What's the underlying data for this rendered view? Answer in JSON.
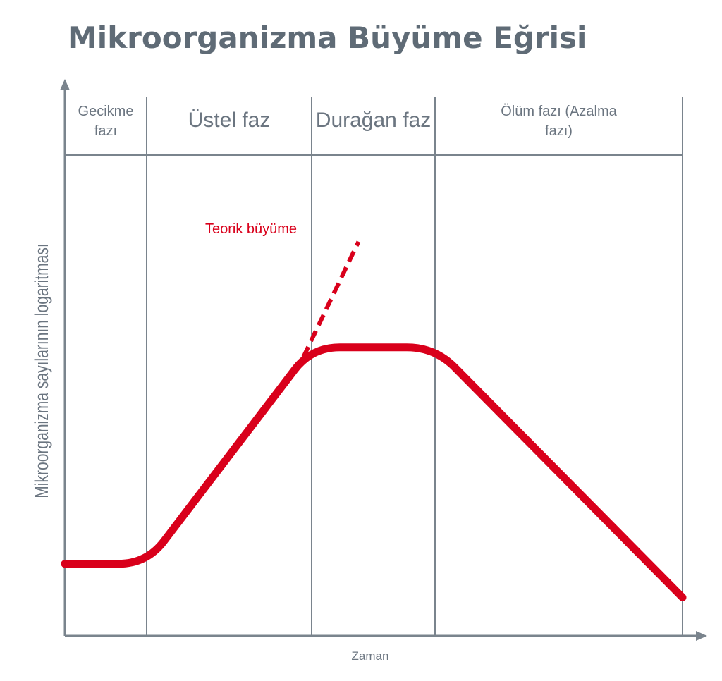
{
  "chart_data": {
    "type": "line",
    "title": "Mikroorganizma Büyüme Eğrisi",
    "xlabel": "Zaman",
    "ylabel": "Mikroorganizma sayılarının logaritması",
    "phases": [
      {
        "label_lines": [
          "Gecikme",
          "fazı"
        ],
        "label_size": "small"
      },
      {
        "label_lines": [
          "Üstel faz"
        ],
        "label_size": "large"
      },
      {
        "label_lines": [
          "Durağan faz"
        ],
        "label_size": "large"
      },
      {
        "label_lines": [
          "Ölüm fazı (Azalma",
          "fazı)"
        ],
        "label_size": "small"
      }
    ],
    "grid": false,
    "colors": {
      "curve": "#d9001b",
      "axes": "#7a848d",
      "text": "#6b7580",
      "title": "#5f6b76"
    },
    "series": [
      {
        "style": "solid",
        "points": [
          {
            "phase": 0,
            "t": 0,
            "level": 0.15
          },
          {
            "phase": 1,
            "t": 0,
            "level": 0.15
          },
          {
            "phase": 1,
            "t": 1,
            "level": 0.6
          },
          {
            "phase": 2,
            "t": 1,
            "level": 0.6
          },
          {
            "phase": 3,
            "t": 1,
            "level": 0.08
          }
        ]
      },
      {
        "name": "Teorik büyüme",
        "style": "dashed",
        "points": [
          {
            "phase": 1,
            "t": 0.95,
            "level": 0.58
          },
          {
            "phase": 2,
            "t": 0.38,
            "level": 0.82
          }
        ]
      }
    ],
    "annotations": [
      {
        "text": "Teorik büyüme",
        "color": "#d9001b"
      }
    ]
  }
}
